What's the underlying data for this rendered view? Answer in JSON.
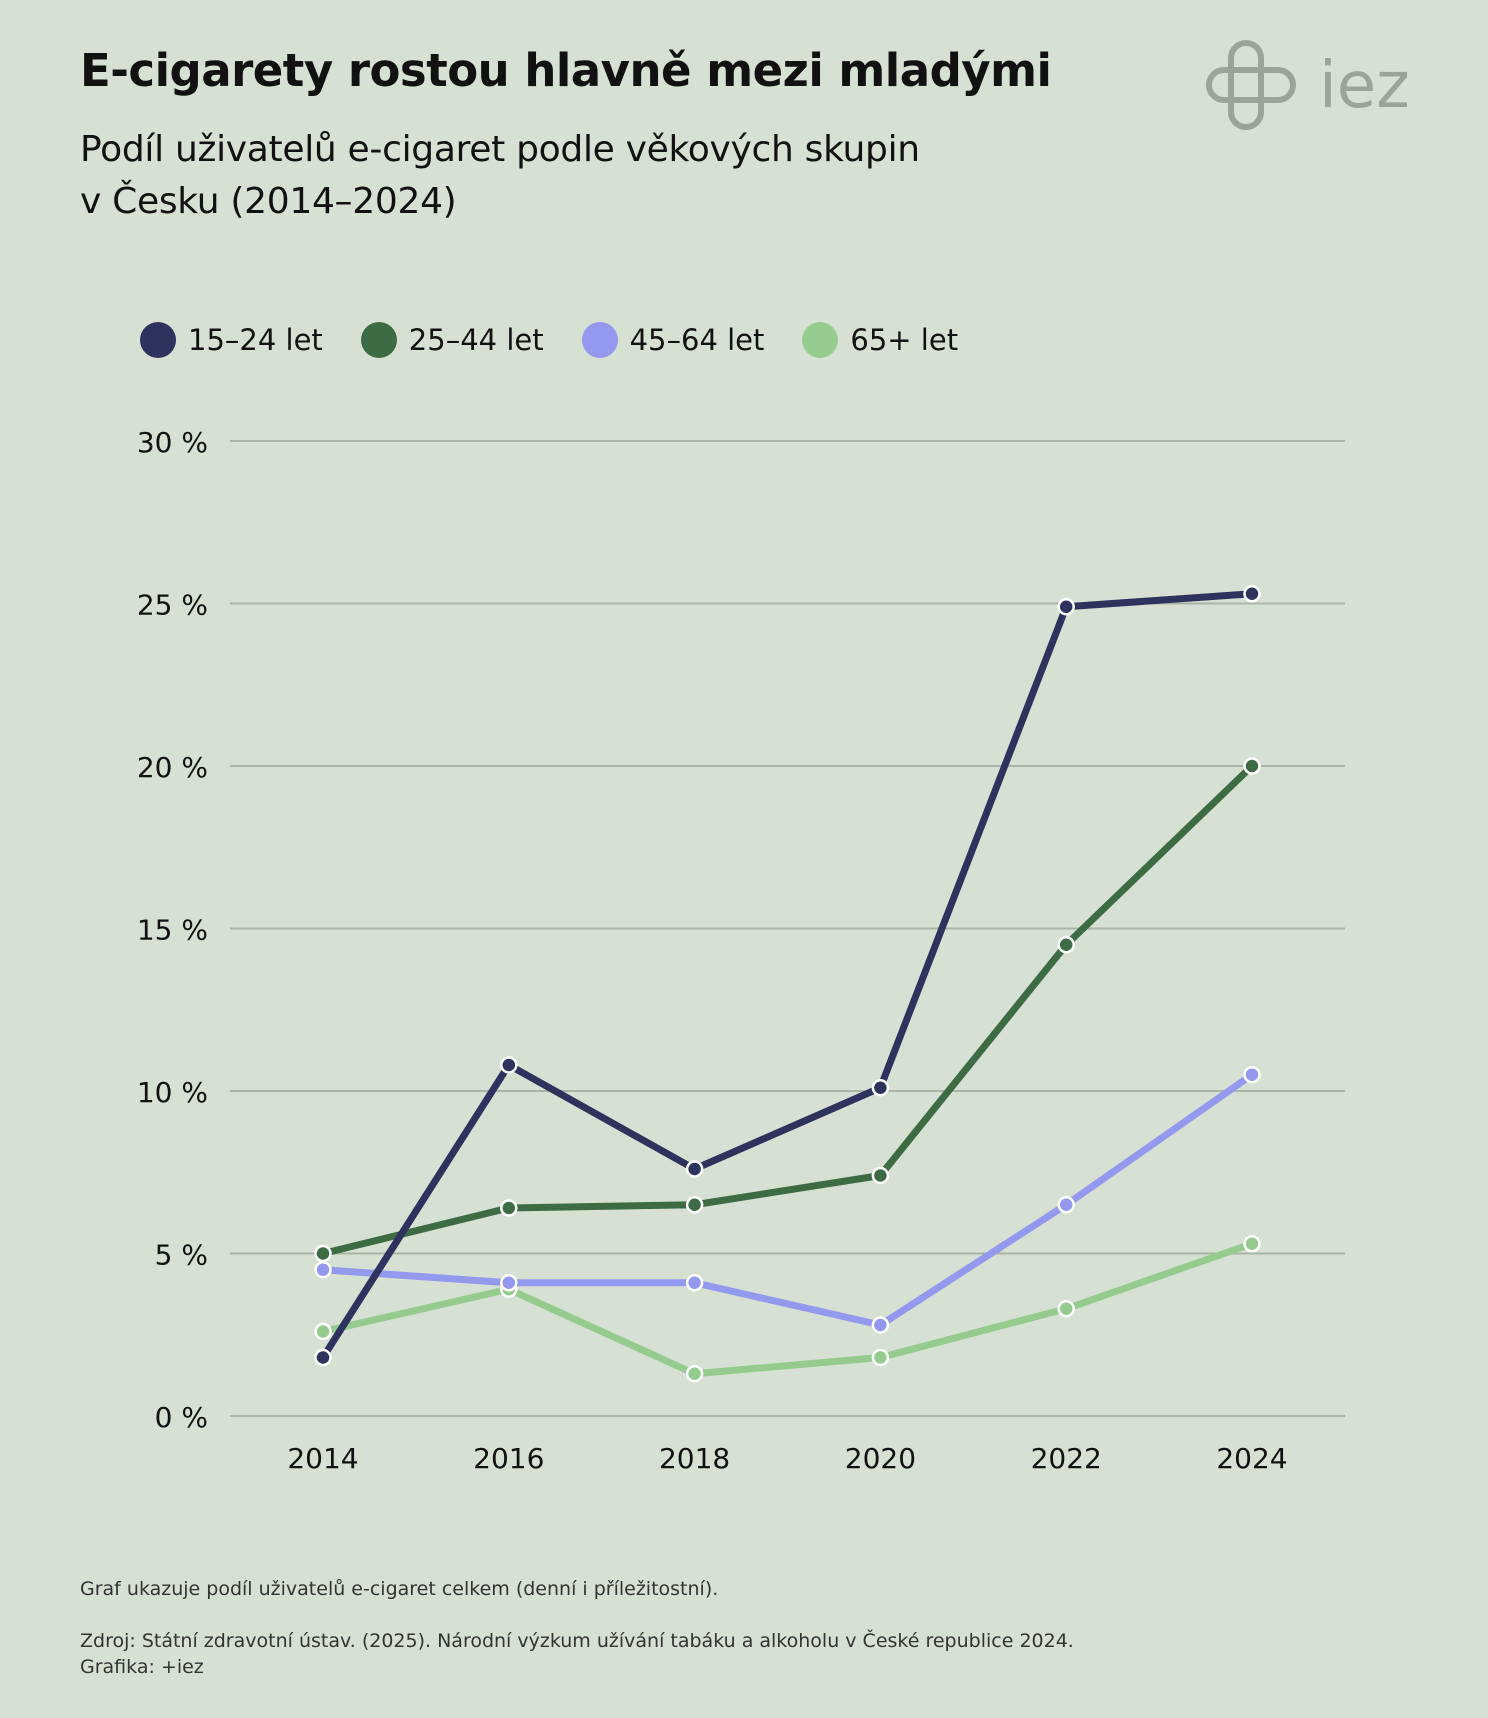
{
  "header": {
    "title": "E-cigarety rostou hlavně mezi mladými",
    "subtitle_line1": "Podíl uživatelů e-cigaret podle věkových skupin",
    "subtitle_line2": "v Česku (2014–2024)"
  },
  "logo": {
    "text": "iez",
    "icon": "iez-cross-logo-icon",
    "color": "#9aa597"
  },
  "chart_data": {
    "type": "line",
    "title": "E-cigarety rostou hlavně mezi mladými",
    "xlabel": "",
    "ylabel": "",
    "x": [
      "2014",
      "2016",
      "2018",
      "2020",
      "2022",
      "2024"
    ],
    "ylim": [
      0,
      30
    ],
    "y_ticks": [
      0,
      5,
      10,
      15,
      20,
      25,
      30
    ],
    "y_tick_labels": [
      "0 %",
      "5 %",
      "10 %",
      "15 %",
      "20 %",
      "25 %",
      "30 %"
    ],
    "grid": true,
    "legend_position": "top-left",
    "series": [
      {
        "name": "15–24 let",
        "color": "#2e335e",
        "values": [
          1.8,
          10.8,
          7.6,
          10.1,
          24.9,
          25.3
        ]
      },
      {
        "name": "25–44 let",
        "color": "#3d6b44",
        "values": [
          5.0,
          6.4,
          6.5,
          7.4,
          14.5,
          20.0
        ]
      },
      {
        "name": "45–64 let",
        "color": "#9299ef",
        "values": [
          4.5,
          4.1,
          4.1,
          2.8,
          6.5,
          10.5
        ]
      },
      {
        "name": "65+ let",
        "color": "#96cb8f",
        "values": [
          2.6,
          3.9,
          1.3,
          1.8,
          3.3,
          5.3
        ]
      }
    ]
  },
  "footer": {
    "note": "Graf ukazuje podíl uživatelů e-cigaret celkem (denní i příležitostní).",
    "source": "Zdroj: Státní zdravotní ústav. (2025). Národní výzkum užívání tabáku a alkoholu v České republice 2024.",
    "credit": "Grafika: +iez"
  }
}
